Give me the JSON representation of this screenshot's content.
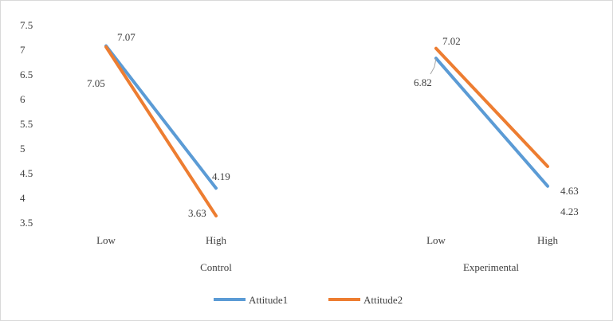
{
  "chart_data": {
    "type": "line",
    "title": "",
    "xlabel": "",
    "ylabel": "",
    "ylim": [
      3.5,
      7.5
    ],
    "yticks": [
      "3.5",
      "4",
      "4.5",
      "5",
      "5.5",
      "6",
      "6.5",
      "7",
      "7.5"
    ],
    "grid": false,
    "legend": "bottom",
    "groups": [
      {
        "name": "Control",
        "categories": [
          "Low",
          "High"
        ]
      },
      {
        "name": "Experimental",
        "categories": [
          "Low",
          "High"
        ]
      }
    ],
    "series": [
      {
        "name": "Attitude1",
        "color": "#5b9bd5",
        "values": [
          [
            7.07,
            4.19
          ],
          [
            6.82,
            4.23
          ]
        ],
        "labels": [
          [
            "7.07",
            "4.19"
          ],
          [
            "6.82",
            "4.23"
          ]
        ]
      },
      {
        "name": "Attitude2",
        "color": "#ed7d31",
        "values": [
          [
            7.05,
            3.63
          ],
          [
            7.02,
            4.63
          ]
        ],
        "labels": [
          [
            "7.05",
            "3.63"
          ],
          [
            "7.02",
            "4.63"
          ]
        ]
      }
    ]
  }
}
